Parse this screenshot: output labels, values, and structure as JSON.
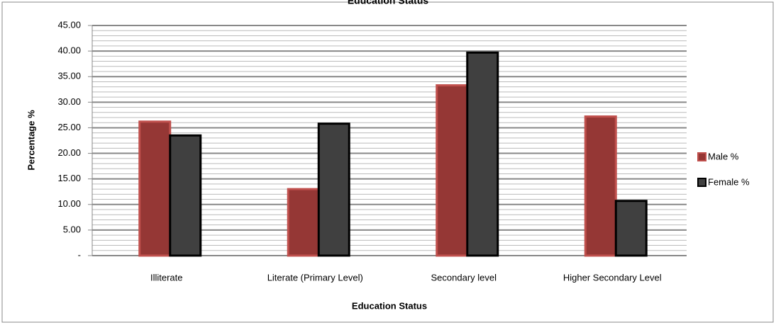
{
  "chart_data": {
    "type": "bar",
    "title": "Education Status",
    "categories": [
      "Illiterate",
      "Literate (Primary Level)",
      "Secondary level",
      "Higher Secondary Level"
    ],
    "series": [
      {
        "name": "Male %",
        "color": "#953735",
        "values": [
          26.2,
          13.0,
          33.3,
          27.2
        ]
      },
      {
        "name": "Female %",
        "color": "#404040",
        "values": [
          23.5,
          25.8,
          39.7,
          10.7
        ]
      }
    ],
    "ylim": [
      0,
      45
    ],
    "yticks": [
      {
        "value": 0,
        "label": "-"
      },
      {
        "value": 5,
        "label": "5.00"
      },
      {
        "value": 10,
        "label": "10.00"
      },
      {
        "value": 15,
        "label": "15.00"
      },
      {
        "value": 20,
        "label": "20.00"
      },
      {
        "value": 25,
        "label": "25.00"
      },
      {
        "value": 30,
        "label": "30.00"
      },
      {
        "value": 35,
        "label": "35.00"
      },
      {
        "value": 40,
        "label": "40.00"
      },
      {
        "value": 45,
        "label": "45.00"
      }
    ],
    "y_label": "Percentage %",
    "x_label": "Education Status",
    "grid": true,
    "legend": "right"
  }
}
